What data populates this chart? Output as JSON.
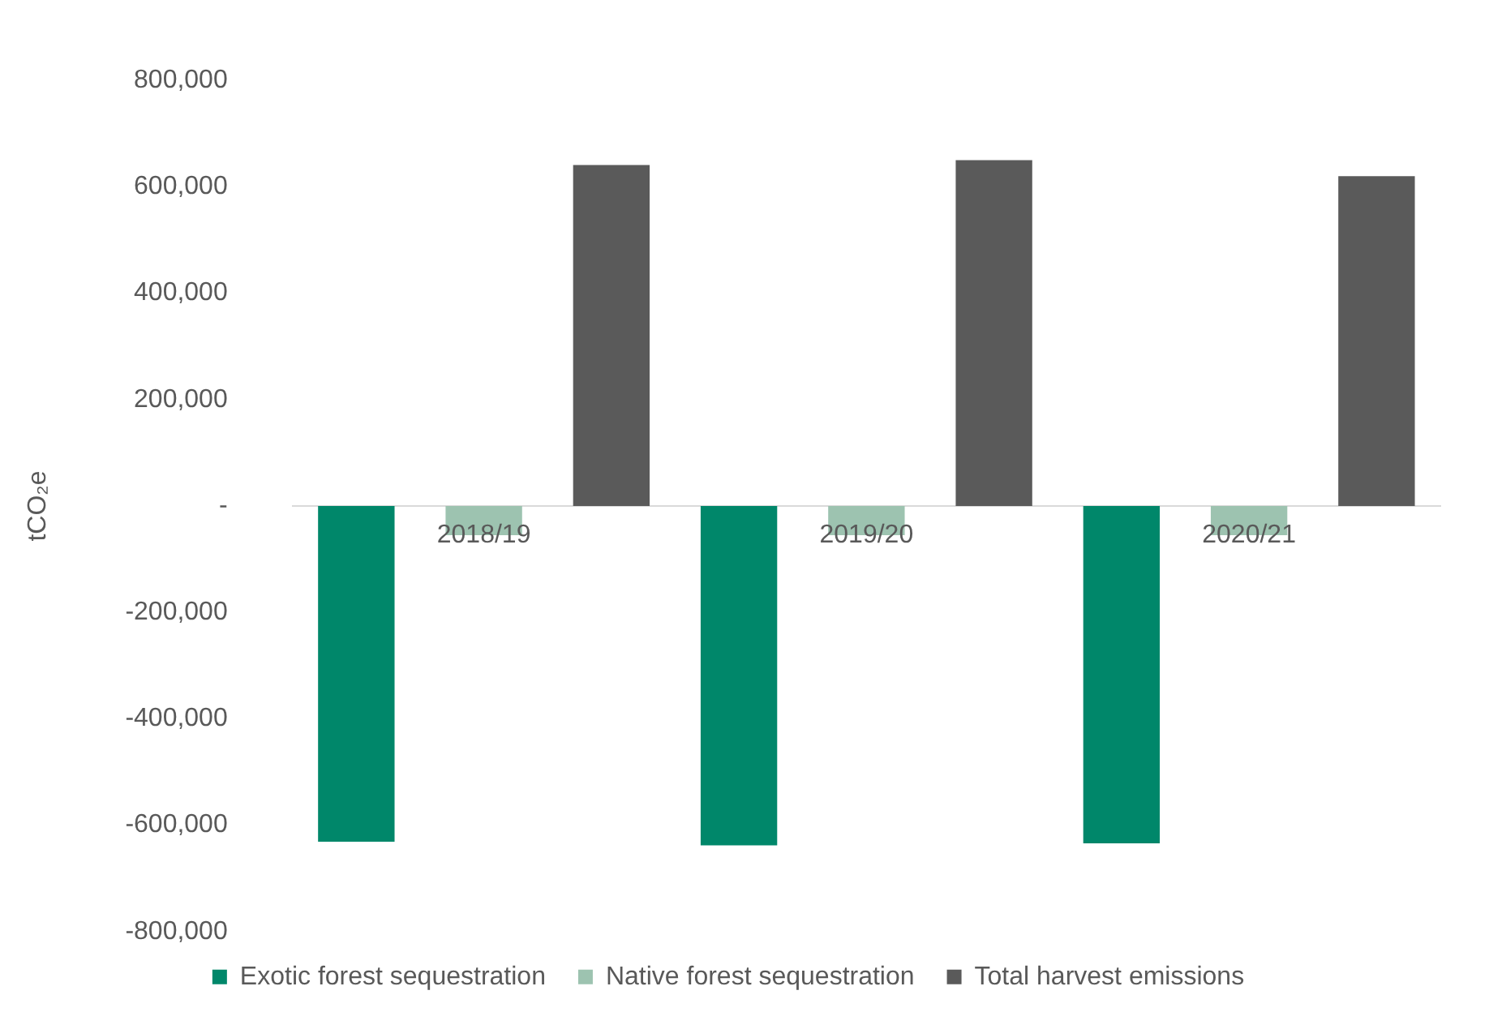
{
  "chart_data": {
    "type": "bar",
    "ylabel": "tCO₂e",
    "categories": [
      "2018/19",
      "2019/20",
      "2020/21"
    ],
    "series": [
      {
        "name": "Exotic forest sequestration",
        "color": "#00876a",
        "values": [
          -631000,
          -638000,
          -634000
        ]
      },
      {
        "name": "Native forest sequestration",
        "color": "#9dc3b0",
        "values": [
          -55000,
          -55000,
          -55000
        ]
      },
      {
        "name": "Total harvest emissions",
        "color": "#5a5a5a",
        "values": [
          641000,
          650000,
          620000
        ]
      }
    ],
    "ylim": [
      -800000,
      800000
    ],
    "yticks": [
      {
        "value": -800000,
        "label": "-800,000"
      },
      {
        "value": -600000,
        "label": "-600,000"
      },
      {
        "value": -400000,
        "label": "-400,000"
      },
      {
        "value": -200000,
        "label": "-200,000"
      },
      {
        "value": 0,
        "label": "-"
      },
      {
        "value": 200000,
        "label": "200,000"
      },
      {
        "value": 400000,
        "label": "400,000"
      },
      {
        "value": 600000,
        "label": "600,000"
      },
      {
        "value": 800000,
        "label": "800,000"
      }
    ],
    "grid": false,
    "legend": "bottom"
  }
}
